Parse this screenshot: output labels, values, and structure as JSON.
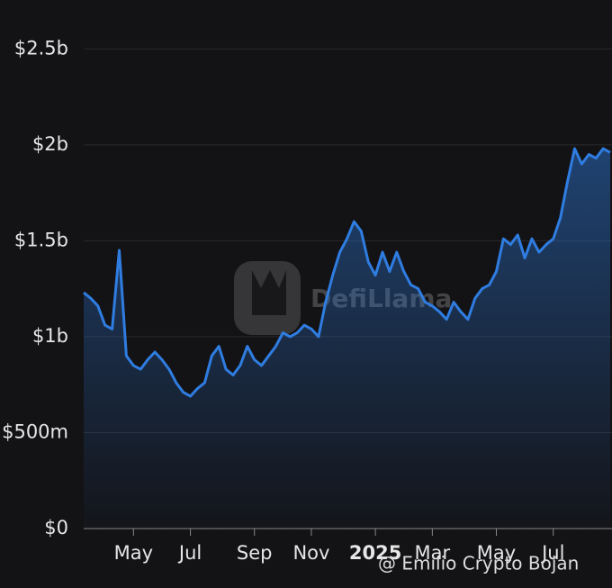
{
  "chart_data": {
    "type": "area",
    "categories": [
      null,
      null,
      null,
      null,
      null,
      null,
      null,
      "May",
      null,
      null,
      null,
      null,
      null,
      null,
      null,
      "Jul",
      null,
      null,
      null,
      null,
      null,
      null,
      null,
      null,
      "Sep",
      null,
      null,
      null,
      null,
      null,
      null,
      null,
      "Nov",
      null,
      null,
      null,
      null,
      null,
      null,
      null,
      null,
      "2025",
      null,
      null,
      null,
      null,
      null,
      null,
      null,
      "Mar",
      null,
      null,
      null,
      null,
      null,
      null,
      null,
      null,
      "May",
      null,
      null,
      null,
      null,
      null,
      null,
      null,
      "Jul",
      null,
      null,
      null,
      null,
      null,
      null,
      null,
      null
    ],
    "values": [
      1230000000,
      1200000000,
      1160000000,
      1060000000,
      1040000000,
      1450000000,
      900000000,
      850000000,
      830000000,
      880000000,
      920000000,
      880000000,
      830000000,
      760000000,
      710000000,
      690000000,
      730000000,
      760000000,
      900000000,
      950000000,
      830000000,
      800000000,
      850000000,
      950000000,
      880000000,
      850000000,
      900000000,
      950000000,
      1020000000,
      1000000000,
      1020000000,
      1060000000,
      1040000000,
      1000000000,
      1180000000,
      1320000000,
      1440000000,
      1510000000,
      1600000000,
      1550000000,
      1390000000,
      1320000000,
      1440000000,
      1340000000,
      1440000000,
      1340000000,
      1270000000,
      1250000000,
      1180000000,
      1160000000,
      1130000000,
      1090000000,
      1180000000,
      1130000000,
      1090000000,
      1200000000,
      1250000000,
      1270000000,
      1340000000,
      1510000000,
      1480000000,
      1530000000,
      1410000000,
      1510000000,
      1440000000,
      1480000000,
      1510000000,
      1620000000,
      1810000000,
      1980000000,
      1900000000,
      1950000000,
      1930000000,
      1980000000,
      1960000000
    ],
    "color": "#2f7de1",
    "ylim": [
      0,
      2750000000
    ],
    "yticks": [
      {
        "value": 0,
        "label": "$0"
      },
      {
        "value": 500000000,
        "label": "$500m"
      },
      {
        "value": 1000000000,
        "label": "$1b"
      },
      {
        "value": 1500000000,
        "label": "$1.5b"
      },
      {
        "value": 2000000000,
        "label": "$2b"
      },
      {
        "value": 2500000000,
        "label": "$2.5b"
      }
    ],
    "grid": true,
    "watermark": "DefiLlama",
    "credit": "@ Emilio Crypto Bojan"
  }
}
